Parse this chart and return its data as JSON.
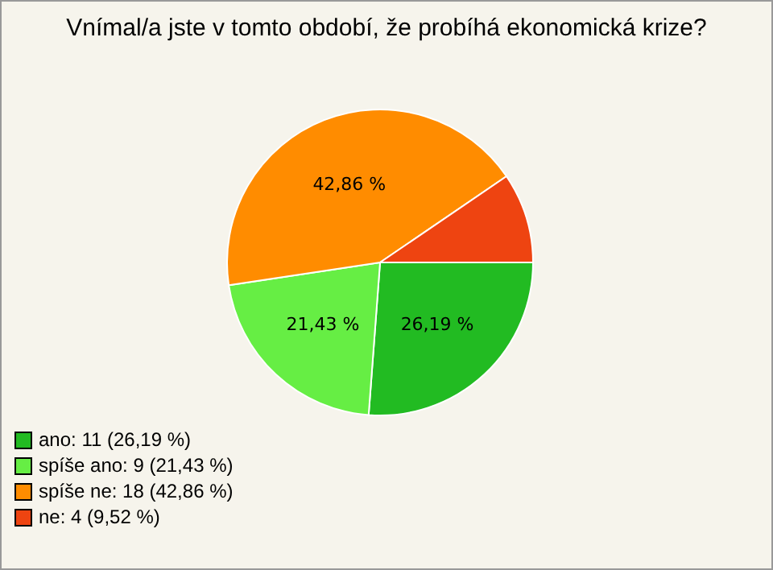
{
  "chart_data": {
    "type": "pie",
    "title": "Vnímal/a jste v tomto období, že probíhá ekonomická krize?",
    "categories": [
      "ano: 11 (26,19 %)",
      "spíše ano: 9 (21,43 %)",
      "spíše ne: 18 (42,86 %)",
      "ne: 4 (9,52 %)"
    ],
    "values": [
      26.19,
      21.43,
      42.86,
      9.52
    ],
    "colors": [
      "#22bb22",
      "#66ee44",
      "#ff8c00",
      "#ee4411"
    ],
    "value_labels": [
      "26,19 %",
      "21,43 %",
      "42,86 %",
      null
    ],
    "legend": "bottom left"
  }
}
